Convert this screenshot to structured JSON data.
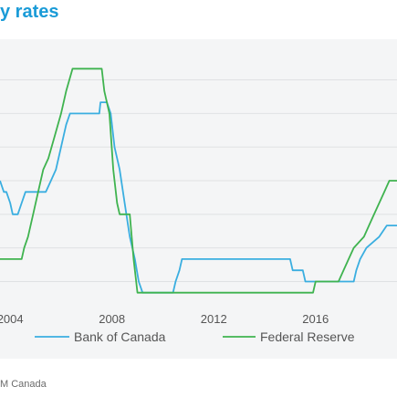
{
  "title": "y rates",
  "source": "M Canada",
  "colors": {
    "title": "#1a9bd7",
    "panel_bg": "#f4f5f6",
    "grid": "#dfe1e3",
    "tick_label": "#555555",
    "bank_of_canada": "#3aaee0",
    "federal_reserve": "#3fb34f"
  },
  "chart_data": {
    "type": "line",
    "title": "y rates",
    "xlabel": "",
    "ylabel": "",
    "xlim": [
      2003.6,
      2019.2
    ],
    "ylim": [
      0,
      5.5
    ],
    "x_ticks": [
      2004,
      2008,
      2012,
      2016
    ],
    "y_gridlines": [
      0.5,
      1.25,
      2.0,
      2.75,
      3.5,
      4.25,
      5.0
    ],
    "grid": true,
    "legend_position": "bottom",
    "series": [
      {
        "name": "Bank of Canada",
        "color": "#3aaee0",
        "points": [
          [
            2003.6,
            2.75
          ],
          [
            2003.75,
            2.5
          ],
          [
            2003.85,
            2.5
          ],
          [
            2004.0,
            2.25
          ],
          [
            2004.1,
            2.0
          ],
          [
            2004.3,
            2.0
          ],
          [
            2004.45,
            2.25
          ],
          [
            2004.6,
            2.5
          ],
          [
            2005.4,
            2.5
          ],
          [
            2005.6,
            2.75
          ],
          [
            2005.8,
            3.0
          ],
          [
            2006.0,
            3.5
          ],
          [
            2006.2,
            4.0
          ],
          [
            2006.35,
            4.25
          ],
          [
            2007.5,
            4.25
          ],
          [
            2007.55,
            4.5
          ],
          [
            2007.8,
            4.5
          ],
          [
            2007.95,
            4.25
          ],
          [
            2008.1,
            3.5
          ],
          [
            2008.3,
            3.0
          ],
          [
            2008.5,
            2.25
          ],
          [
            2008.7,
            1.5
          ],
          [
            2008.9,
            1.0
          ],
          [
            2009.05,
            0.5
          ],
          [
            2009.2,
            0.25
          ],
          [
            2010.4,
            0.25
          ],
          [
            2010.5,
            0.5
          ],
          [
            2010.65,
            0.75
          ],
          [
            2010.75,
            1.0
          ],
          [
            2015.0,
            1.0
          ],
          [
            2015.1,
            0.75
          ],
          [
            2015.5,
            0.75
          ],
          [
            2015.6,
            0.5
          ],
          [
            2017.5,
            0.5
          ],
          [
            2017.6,
            0.75
          ],
          [
            2017.75,
            1.0
          ],
          [
            2018.0,
            1.25
          ],
          [
            2018.5,
            1.5
          ],
          [
            2018.8,
            1.75
          ],
          [
            2019.2,
            1.75
          ]
        ]
      },
      {
        "name": "Federal Reserve",
        "color": "#3fb34f",
        "points": [
          [
            2003.6,
            1.0
          ],
          [
            2004.45,
            1.0
          ],
          [
            2004.55,
            1.25
          ],
          [
            2004.7,
            1.5
          ],
          [
            2004.9,
            2.0
          ],
          [
            2005.1,
            2.5
          ],
          [
            2005.3,
            3.0
          ],
          [
            2005.5,
            3.25
          ],
          [
            2005.75,
            3.75
          ],
          [
            2006.0,
            4.25
          ],
          [
            2006.2,
            4.75
          ],
          [
            2006.45,
            5.25
          ],
          [
            2007.6,
            5.25
          ],
          [
            2007.7,
            4.75
          ],
          [
            2007.9,
            4.25
          ],
          [
            2008.05,
            3.0
          ],
          [
            2008.2,
            2.25
          ],
          [
            2008.3,
            2.0
          ],
          [
            2008.7,
            2.0
          ],
          [
            2008.85,
            1.0
          ],
          [
            2009.0,
            0.25
          ],
          [
            2015.9,
            0.25
          ],
          [
            2016.0,
            0.5
          ],
          [
            2016.9,
            0.5
          ],
          [
            2017.1,
            0.75
          ],
          [
            2017.3,
            1.0
          ],
          [
            2017.5,
            1.25
          ],
          [
            2017.9,
            1.5
          ],
          [
            2018.1,
            1.75
          ],
          [
            2018.3,
            2.0
          ],
          [
            2018.5,
            2.25
          ],
          [
            2018.7,
            2.5
          ],
          [
            2018.9,
            2.75
          ],
          [
            2019.2,
            2.75
          ]
        ]
      }
    ]
  }
}
